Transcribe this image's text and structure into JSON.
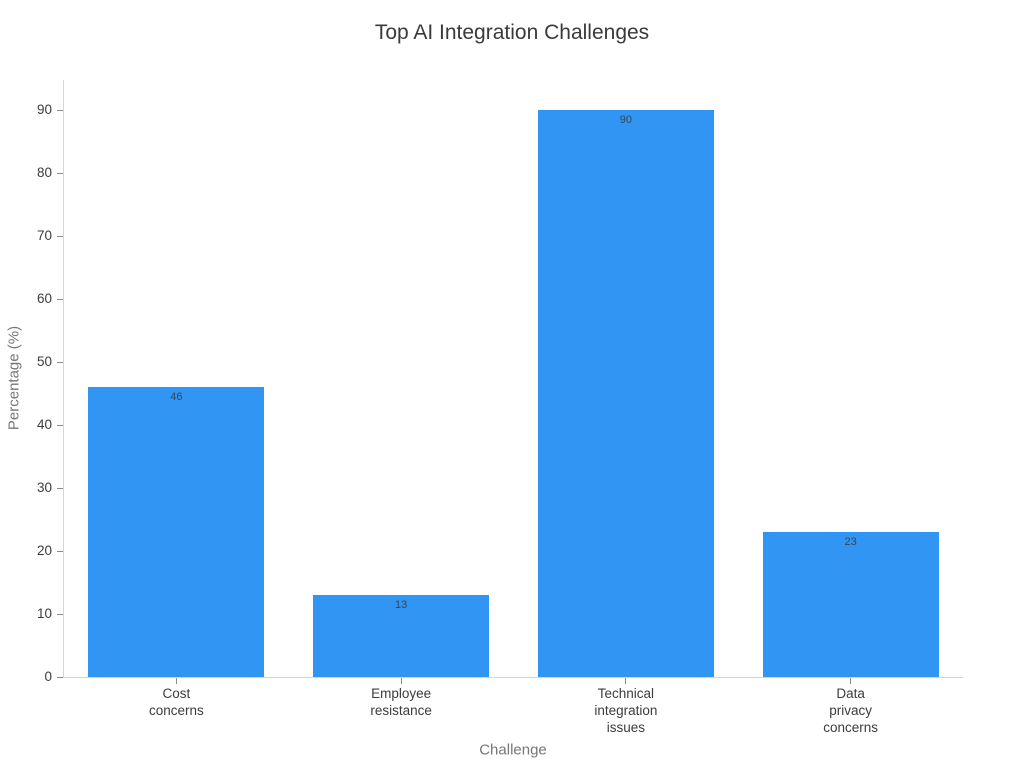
{
  "chart_data": {
    "type": "bar",
    "title": "Top AI Integration Challenges",
    "xlabel": "Challenge",
    "ylabel": "Percentage (%)",
    "categories": [
      "Cost\nconcerns",
      "Employee\nresistance",
      "Technical\nintegration\nissues",
      "Data\nprivacy\nconcerns"
    ],
    "values": [
      46,
      13,
      90,
      23
    ],
    "bar_labels": [
      "46",
      "13",
      "90",
      "23"
    ],
    "yticks": [
      0,
      10,
      20,
      30,
      40,
      50,
      60,
      70,
      80,
      90
    ],
    "ylim": [
      0,
      94.8
    ],
    "grid": false,
    "legend": "none",
    "colors": {
      "bar": "#3095f3",
      "value_label": "#3a4654",
      "tick_label": "#3c3c3c",
      "tick_mark": "#8c8c8c",
      "axis_line": "#d6d6d6",
      "axis_title": "#767676",
      "title": "#3a3a3a"
    }
  }
}
